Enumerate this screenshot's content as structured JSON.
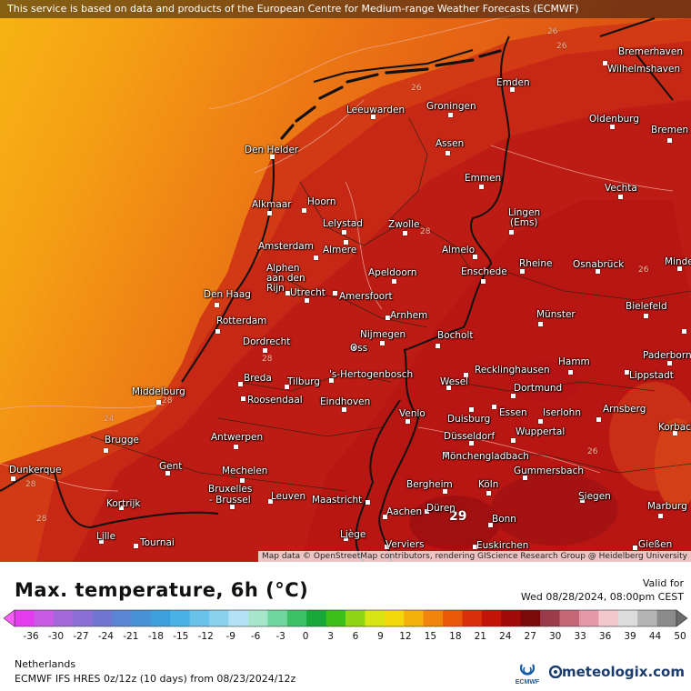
{
  "banner": "This service is based on data and products of the European Centre for Medium-range Weather Forecasts (ECMWF)",
  "attribution": "Map data © OpenStreetMap contributors, rendering GIScience Research Group @ Heidelberg University",
  "title": "Max. temperature, 6h (°C)",
  "valid_for_label": "Valid for",
  "valid_date": "Wed 08/28/2024, 08:00pm CEST",
  "region": "Netherlands",
  "model": "ECMWF IFS HRES 0z/12z (10 days)  from  08/23/2024/12z",
  "ecmwf_label": "ECMWF",
  "brand": "meteologix.com",
  "highlight_value": "29",
  "scale_ticks": [
    "-36",
    "-30",
    "-27",
    "-24",
    "-21",
    "-18",
    "-15",
    "-12",
    "-9",
    "-6",
    "-3",
    "0",
    "3",
    "6",
    "9",
    "12",
    "15",
    "18",
    "21",
    "24",
    "27",
    "30",
    "33",
    "36",
    "39",
    "44",
    "50"
  ],
  "scale_colors": [
    "#e63cf0",
    "#c85be6",
    "#a467dc",
    "#8c6fd6",
    "#7077d2",
    "#5a84d4",
    "#4a92d8",
    "#3ca0dc",
    "#4ab2e4",
    "#68c2ea",
    "#8ad2f0",
    "#b4e2f4",
    "#a8e6cc",
    "#70d6a0",
    "#3cc066",
    "#18a83a",
    "#3cbf18",
    "#8ed616",
    "#d8e414",
    "#f4d80e",
    "#f6b00c",
    "#f0840c",
    "#e85a0a",
    "#d8300a",
    "#c21408",
    "#a00a08",
    "#7a0a0a",
    "#9a3a4a",
    "#c46878",
    "#e49aa6",
    "#f2c8cc",
    "#dcdcdc",
    "#b4b4b4",
    "#8c8c8c"
  ],
  "contour_labels": [
    "24",
    "26",
    "28"
  ],
  "cities": [
    {
      "name": "Bremerhaven"
    },
    {
      "name": "Wilhelmshaven"
    },
    {
      "name": "Emden"
    },
    {
      "name": "Oldenburg"
    },
    {
      "name": "Bremen"
    },
    {
      "name": "Leeuwarden"
    },
    {
      "name": "Groningen"
    },
    {
      "name": "Den Helder"
    },
    {
      "name": "Assen"
    },
    {
      "name": "Emmen"
    },
    {
      "name": "Vechta"
    },
    {
      "name": "Alkmaar"
    },
    {
      "name": "Hoorn"
    },
    {
      "name": "Lelystad"
    },
    {
      "name": "Zwolle"
    },
    {
      "name": "Lingen"
    },
    {
      "name": "(Ems)"
    },
    {
      "name": "Amsterdam"
    },
    {
      "name": "Almere"
    },
    {
      "name": "Almelo"
    },
    {
      "name": "Alphen"
    },
    {
      "name": "aan den"
    },
    {
      "name": "Rijn"
    },
    {
      "name": "Apeldoorn"
    },
    {
      "name": "Enschede"
    },
    {
      "name": "Rheine"
    },
    {
      "name": "Osnabrück"
    },
    {
      "name": "Minden"
    },
    {
      "name": "Den Haag"
    },
    {
      "name": "Utrecht"
    },
    {
      "name": "Amersfoort"
    },
    {
      "name": "Bielefeld"
    },
    {
      "name": "Arnhem"
    },
    {
      "name": "Münster"
    },
    {
      "name": "Rotterdam"
    },
    {
      "name": "Nijmegen"
    },
    {
      "name": "Bocholt"
    },
    {
      "name": "Dordrecht"
    },
    {
      "name": "Oss"
    },
    {
      "name": "Paderborn"
    },
    {
      "name": "Hamm"
    },
    {
      "name": "Breda"
    },
    {
      "name": "Tilburg"
    },
    {
      "name": "'s-Hertogenbosch"
    },
    {
      "name": "Recklinghausen"
    },
    {
      "name": "Lippstadt"
    },
    {
      "name": "Middelburg"
    },
    {
      "name": "Wesel"
    },
    {
      "name": "Roosendaal"
    },
    {
      "name": "Eindhoven"
    },
    {
      "name": "Dortmund"
    },
    {
      "name": "Iserlohn"
    },
    {
      "name": "Arnsberg"
    },
    {
      "name": "Venlo"
    },
    {
      "name": "Duisburg"
    },
    {
      "name": "Essen"
    },
    {
      "name": "Korbach"
    },
    {
      "name": "Brugge"
    },
    {
      "name": "Antwerpen"
    },
    {
      "name": "Wuppertal"
    },
    {
      "name": "Düsseldorf"
    },
    {
      "name": "Mönchengladbach"
    },
    {
      "name": "Dunkerque"
    },
    {
      "name": "Gent"
    },
    {
      "name": "Mechelen"
    },
    {
      "name": "Gummersbach"
    },
    {
      "name": "Bergheim"
    },
    {
      "name": "Köln"
    },
    {
      "name": "Kortrijk"
    },
    {
      "name": "Bruxelles"
    },
    {
      "name": "- Brussel"
    },
    {
      "name": "Leuven"
    },
    {
      "name": "Maastricht"
    },
    {
      "name": "Siegen"
    },
    {
      "name": "Marburg"
    },
    {
      "name": "Aachen"
    },
    {
      "name": "Düren"
    },
    {
      "name": "Bonn"
    },
    {
      "name": "Lille"
    },
    {
      "name": "Tournai"
    },
    {
      "name": "Liège"
    },
    {
      "name": "Verviers"
    },
    {
      "name": "Euskirchen"
    },
    {
      "name": "Gießen"
    }
  ]
}
